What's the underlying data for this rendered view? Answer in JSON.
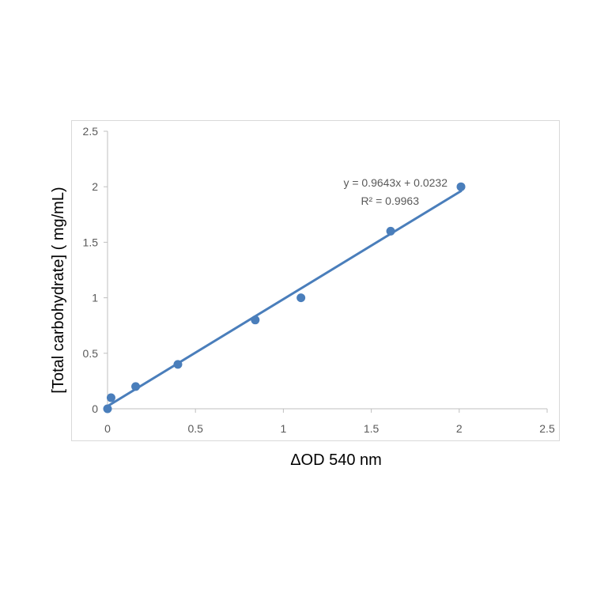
{
  "chart_data": {
    "type": "scatter",
    "title": "",
    "xlabel": "ΔOD 540 nm",
    "ylabel": "[Total carbohydrate] ( mg/mL)",
    "xlim": [
      0,
      2.5
    ],
    "ylim": [
      0,
      2.5
    ],
    "x_ticks": [
      "0",
      "0.5",
      "1",
      "1.5",
      "2",
      "2.5"
    ],
    "y_ticks": [
      "0",
      "0.5",
      "1",
      "1.5",
      "2",
      "2.5"
    ],
    "grid": false,
    "legend": "none",
    "series": [
      {
        "x": [
          0.0,
          0.02,
          0.16,
          0.4,
          0.84,
          1.1,
          1.61,
          2.01
        ],
        "y": [
          0.0,
          0.1,
          0.2,
          0.4,
          0.8,
          1.0,
          1.6,
          2.0
        ]
      }
    ],
    "trendline": {
      "type": "linear",
      "slope": 0.9643,
      "intercept": 0.0232,
      "x_range": [
        0,
        2.01
      ],
      "equation": "y = 0.9643x + 0.0232",
      "r_squared": "R² = 0.9963"
    },
    "colors": {
      "marker": "#4a7ebb",
      "trendline": "#4a7ebb",
      "axis": "#bfbfbf",
      "tick_text": "#595959",
      "border": "#d9d9d9"
    }
  }
}
